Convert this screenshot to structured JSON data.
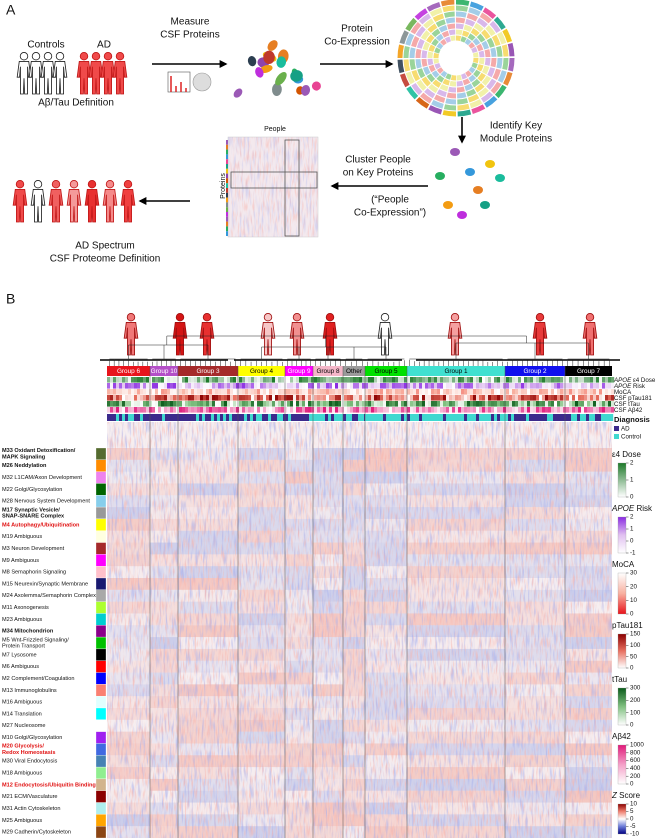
{
  "panel_a": {
    "label": "A",
    "controls": "Controls",
    "ad": "AD",
    "definition": "Aβ/Tau Definition",
    "measure": [
      "Measure",
      "CSF Proteins"
    ],
    "coexpression": [
      "Protein",
      "Co-Expression"
    ],
    "identify": [
      "Identify Key",
      "Module Proteins"
    ],
    "cluster": [
      "Cluster People",
      "on Key Proteins"
    ],
    "people_coexpression": [
      "(“People",
      "Co-Expression”)"
    ],
    "heatmap_x_label": "People",
    "heatmap_y_label": "Proteins",
    "spectrum": [
      "AD Spectrum",
      "CSF Proteome Definition"
    ]
  },
  "panel_b": {
    "label": "B",
    "groups": [
      {
        "name": "Group 6",
        "color": "#e8141c"
      },
      {
        "name": "Group 10",
        "color": "#b44fc8"
      },
      {
        "name": "Group 3",
        "color": "#a52a2a"
      },
      {
        "name": "Group 4",
        "color": "#ffff00"
      },
      {
        "name": "Group 9",
        "color": "#ff00ff"
      },
      {
        "name": "Group 8",
        "color": "#f4b6c8"
      },
      {
        "name": "Other",
        "color": "#9a9a9a"
      },
      {
        "name": "Group 5",
        "color": "#00e000"
      },
      {
        "name": "Group 1",
        "color": "#40e0d0"
      },
      {
        "name": "Group 2",
        "color": "#1010ee"
      },
      {
        "name": "Group 7",
        "color": "#000000"
      }
    ],
    "tracks": [
      {
        "italic": "APOE",
        "label": "ε4 Dose"
      },
      {
        "italic": "APOE",
        "label": "Risk"
      },
      {
        "label": "MoCA"
      },
      {
        "label": "CSF pTau181"
      },
      {
        "label": "CSF tTau"
      },
      {
        "label": "CSF Aβ42"
      }
    ],
    "diagnosis": {
      "title": "Diagnosis",
      "items": [
        {
          "name": "AD",
          "color": "#3c2a8c"
        },
        {
          "name": "Control",
          "color": "#40d8d0"
        }
      ]
    },
    "colorbars": [
      {
        "title": "ε4 Dose",
        "colors": [
          "#ffffff",
          "#1e7a2a"
        ],
        "lim": [
          0,
          2
        ],
        "ticks": [
          0,
          1,
          2
        ]
      },
      {
        "italic": "APOE",
        "title": "Risk",
        "colors": [
          "#ffffff",
          "#e0c0f0",
          "#8a2be2"
        ],
        "lim": [
          -1,
          2
        ],
        "ticks": [
          -1,
          0,
          1,
          2
        ]
      },
      {
        "title": "MoCA",
        "colors": [
          "#e8141c",
          "#f8b0a0",
          "#ffffff"
        ],
        "lim": [
          0,
          30
        ],
        "ticks": [
          0,
          10,
          20,
          30
        ]
      },
      {
        "title": "pTau181",
        "colors": [
          "#ffffff",
          "#e87060",
          "#8b0000"
        ],
        "lim": [
          0,
          150
        ],
        "ticks": [
          0,
          50,
          100,
          150
        ]
      },
      {
        "title": "tTau",
        "colors": [
          "#ffffff",
          "#80c080",
          "#0a5a1a"
        ],
        "lim": [
          0,
          300
        ],
        "ticks": [
          0,
          100,
          200,
          300
        ]
      },
      {
        "title": "Aβ42",
        "colors": [
          "#ffffff",
          "#f4a0c8",
          "#e01a7a"
        ],
        "lim": [
          0,
          1000
        ],
        "ticks": [
          0,
          200,
          400,
          600,
          800,
          1000
        ]
      },
      {
        "italic": "Z",
        "title": "Score",
        "colors": [
          "#000080",
          "#6a7ad8",
          "#ffffff",
          "#f08070",
          "#8b0000"
        ],
        "lim": [
          -10,
          10
        ],
        "ticks": [
          -10,
          -5,
          0,
          5,
          10
        ]
      }
    ],
    "modules": [
      {
        "lines": [
          "M33 Oxidant Detoxification/",
          "MAPK Signaling"
        ],
        "emphasis": "bold",
        "color": "#556b2f"
      },
      {
        "lines": [
          "M26 Neddylation"
        ],
        "emphasis": "bold",
        "color": "#ff8c00"
      },
      {
        "lines": [
          "M32 L1CAM/Axon Development"
        ],
        "emphasis": "none",
        "color": "#ee82ee"
      },
      {
        "lines": [
          "M22 Golgi/Glycosylation"
        ],
        "emphasis": "none",
        "color": "#006400"
      },
      {
        "lines": [
          "M28 Nervous System Development"
        ],
        "emphasis": "none",
        "color": "#87ceeb"
      },
      {
        "lines": [
          "M17 Synaptic Vesicle/",
          "SNAP-SNARE Complex"
        ],
        "emphasis": "bold",
        "color": "#999999"
      },
      {
        "lines": [
          "M4 Autophagy/Ubiquitination"
        ],
        "emphasis": "red",
        "color": "#ffff00"
      },
      {
        "lines": [
          "M19 Ambiguous"
        ],
        "emphasis": "none",
        "color": "#ffffe0"
      },
      {
        "lines": [
          "M3 Neuron Development"
        ],
        "emphasis": "none",
        "color": "#a52a2a"
      },
      {
        "lines": [
          "M9 Ambiguous"
        ],
        "emphasis": "none",
        "color": "#ff00ff"
      },
      {
        "lines": [
          "M8 Semaphorin Signaling"
        ],
        "emphasis": "none",
        "color": "#ffc0cb"
      },
      {
        "lines": [
          "M15 Neurexin/Synaptic Membrane"
        ],
        "emphasis": "none",
        "color": "#191970"
      },
      {
        "lines": [
          "M24 Axolemma/Semaphorin Complex"
        ],
        "emphasis": "none",
        "color": "#a9a9a9"
      },
      {
        "lines": [
          "M11 Axonogenesis"
        ],
        "emphasis": "none",
        "color": "#adff2f"
      },
      {
        "lines": [
          "M23 Ambiguous"
        ],
        "emphasis": "none",
        "color": "#00ced1"
      },
      {
        "lines": [
          "M34 Mitochondrion"
        ],
        "emphasis": "bold",
        "color": "#8b008b"
      },
      {
        "lines": [
          "M5 Wnt-Frizzled Signaling/",
          "Protein Transport"
        ],
        "emphasis": "none",
        "color": "#00c000"
      },
      {
        "lines": [
          "M7 Lysosome"
        ],
        "emphasis": "none",
        "color": "#000000"
      },
      {
        "lines": [
          "M6 Ambiguous"
        ],
        "emphasis": "none",
        "color": "#ff0000"
      },
      {
        "lines": [
          "M2 Complement/Coagulation"
        ],
        "emphasis": "none",
        "color": "#0000ff"
      },
      {
        "lines": [
          "M13 Immunoglobulins"
        ],
        "emphasis": "none",
        "color": "#fa8072"
      },
      {
        "lines": [
          "M16 Ambiguous"
        ],
        "emphasis": "none",
        "color": "#e0ffff"
      },
      {
        "lines": [
          "M14 Translation"
        ],
        "emphasis": "none",
        "color": "#00ffff"
      },
      {
        "lines": [
          "M27 Nucleosome"
        ],
        "emphasis": "none",
        "color": "#ffffff"
      },
      {
        "lines": [
          "M10 Golgi/Glycosylation"
        ],
        "emphasis": "none",
        "color": "#a020f0"
      },
      {
        "lines": [
          "M20 Glycolysis/",
          "Redox Homeostasis"
        ],
        "emphasis": "red",
        "color": "#4169e1"
      },
      {
        "lines": [
          "M30 Viral Endocytosis"
        ],
        "emphasis": "none",
        "color": "#4682b4"
      },
      {
        "lines": [
          "M18 Ambiguous"
        ],
        "emphasis": "none",
        "color": "#90ee90"
      },
      {
        "lines": [
          "M12 Endocytosis/Ubiquitin Binding"
        ],
        "emphasis": "red",
        "color": "#d2b48c"
      },
      {
        "lines": [
          "M21 ECM/Vasculature"
        ],
        "emphasis": "none",
        "color": "#8b0000"
      },
      {
        "lines": [
          "M31 Actin Cytoskeleton"
        ],
        "emphasis": "none",
        "color": "#afeeee"
      },
      {
        "lines": [
          "M25 Ambiguous"
        ],
        "emphasis": "none",
        "color": "#ffa500"
      },
      {
        "lines": [
          "M29 Cadherin/Cytoskeleton"
        ],
        "emphasis": "none",
        "color": "#8b4513"
      }
    ]
  }
}
